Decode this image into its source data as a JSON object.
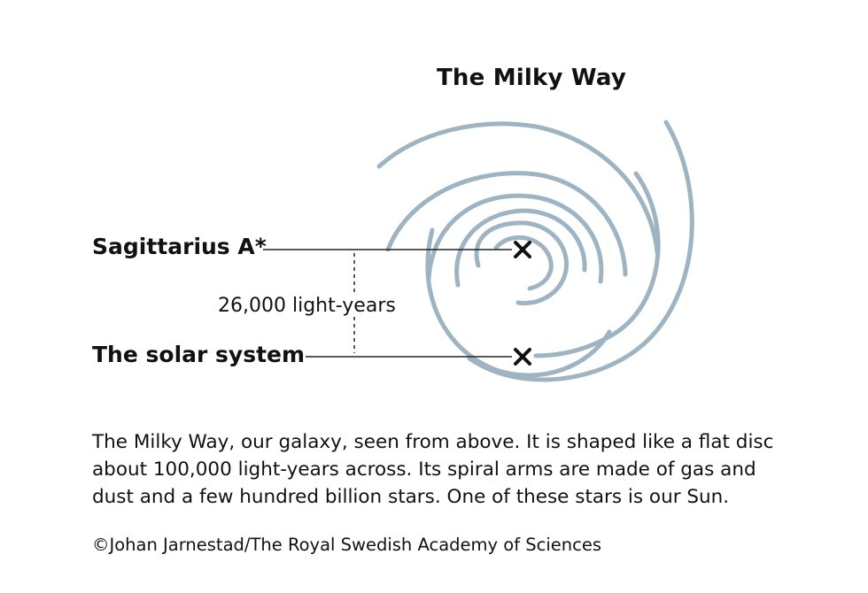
{
  "diagram": {
    "title": "The Milky Way",
    "labels": {
      "center": "Sagittarius A*",
      "sun": "The solar system",
      "distance": "26,000 light-years"
    },
    "colors": {
      "arm": "#9fb4c3",
      "line": "#222222",
      "text": "#111111"
    }
  },
  "caption": {
    "lines": [
      "The Milky Way, our galaxy, seen from above. It is shaped like a flat disc",
      "about 100,000 light-years across. Its spiral arms are made of gas and",
      "dust and a few hundred billion stars. One of these stars is our Sun."
    ]
  },
  "credit": "©Johan Jarnestad/The Royal Swedish Academy of Sciences"
}
